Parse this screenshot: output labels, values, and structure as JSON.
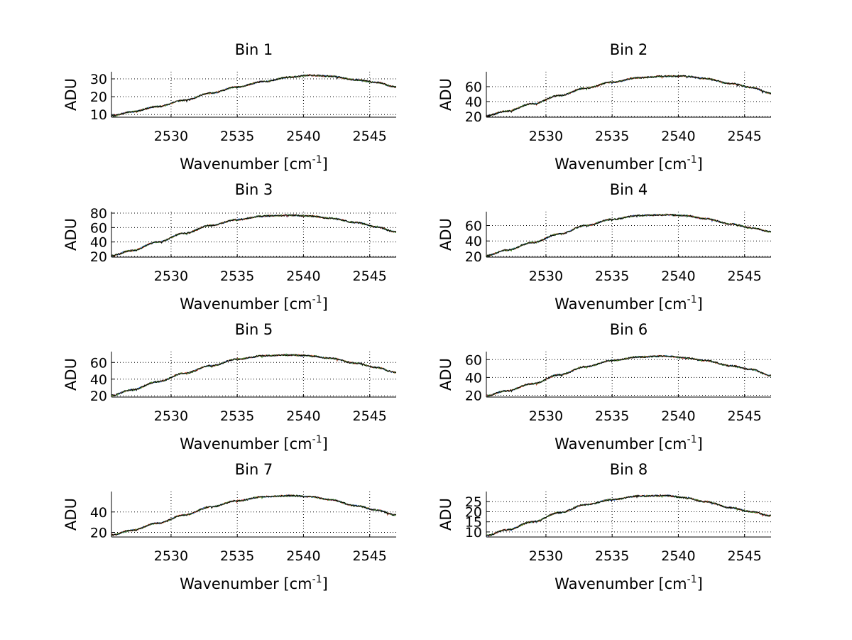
{
  "figure": {
    "background": "#ffffff",
    "series_colors": [
      "#1f5fd1",
      "#d43b1c",
      "#3a8a2a",
      "#000000"
    ]
  },
  "chart_data": [
    {
      "type": "line",
      "title": "Bin 1",
      "xlabel": "Wavenumber [cm",
      "xlabel_sup": "-1",
      "xlabel_close": "]",
      "ylabel": "ADU",
      "xlim": [
        2525.5,
        2547
      ],
      "ylim": [
        8.5,
        34
      ],
      "xticks": [
        2530,
        2535,
        2540,
        2545
      ],
      "xtick_labels": [
        "2530",
        "2535",
        "2540",
        "2545"
      ],
      "yticks": [
        10,
        20,
        30
      ],
      "ytick_labels": [
        "10",
        "20",
        "30"
      ],
      "grid": true,
      "series": [
        {
          "x": [
            2525.5,
            2527,
            2529,
            2531,
            2533,
            2535,
            2537,
            2539,
            2540.5,
            2542,
            2544,
            2545.5,
            2547
          ],
          "y": [
            9.2,
            11.5,
            14.5,
            18,
            22,
            25.5,
            28.5,
            31,
            32,
            31.5,
            29.5,
            28,
            25.5
          ]
        }
      ]
    },
    {
      "type": "line",
      "title": "Bin 2",
      "xlabel": "Wavenumber [cm",
      "xlabel_sup": "-1",
      "xlabel_close": "]",
      "ylabel": "ADU",
      "xlim": [
        2525.5,
        2547
      ],
      "ylim": [
        19,
        80
      ],
      "xticks": [
        2530,
        2535,
        2540,
        2545
      ],
      "xtick_labels": [
        "2530",
        "2535",
        "2540",
        "2545"
      ],
      "yticks": [
        20,
        40,
        60
      ],
      "ytick_labels": [
        "20",
        "40",
        "60"
      ],
      "grid": true,
      "series": [
        {
          "x": [
            2525.5,
            2527,
            2529,
            2531,
            2533,
            2535,
            2537,
            2539,
            2540.5,
            2542,
            2544,
            2545.5,
            2547
          ],
          "y": [
            21,
            27,
            37,
            48,
            58,
            66,
            72,
            74,
            74,
            71,
            64,
            59,
            51
          ]
        }
      ]
    },
    {
      "type": "line",
      "title": "Bin 3",
      "xlabel": "Wavenumber [cm",
      "xlabel_sup": "-1",
      "xlabel_close": "]",
      "ylabel": "ADU",
      "xlim": [
        2525.5,
        2547
      ],
      "ylim": [
        19,
        82
      ],
      "xticks": [
        2530,
        2535,
        2540,
        2545
      ],
      "xtick_labels": [
        "2530",
        "2535",
        "2540",
        "2545"
      ],
      "yticks": [
        20,
        40,
        60,
        80
      ],
      "ytick_labels": [
        "20",
        "40",
        "60",
        "80"
      ],
      "grid": true,
      "series": [
        {
          "x": [
            2525.5,
            2527,
            2529,
            2531,
            2533,
            2535,
            2537,
            2539,
            2540.5,
            2542,
            2544,
            2545.5,
            2547
          ],
          "y": [
            21,
            28,
            40,
            52,
            63,
            71,
            76,
            77,
            76,
            73,
            67,
            61,
            54
          ]
        }
      ]
    },
    {
      "type": "line",
      "title": "Bin 4",
      "xlabel": "Wavenumber [cm",
      "xlabel_sup": "-1",
      "xlabel_close": "]",
      "ylabel": "ADU",
      "xlim": [
        2525.5,
        2547
      ],
      "ylim": [
        19,
        78
      ],
      "xticks": [
        2530,
        2535,
        2540,
        2545
      ],
      "xtick_labels": [
        "2530",
        "2535",
        "2540",
        "2545"
      ],
      "yticks": [
        20,
        40,
        60
      ],
      "ytick_labels": [
        "20",
        "40",
        "60"
      ],
      "grid": true,
      "series": [
        {
          "x": [
            2525.5,
            2527,
            2529,
            2531,
            2533,
            2535,
            2537,
            2539,
            2540.5,
            2542,
            2544,
            2545.5,
            2547
          ],
          "y": [
            21,
            28,
            38,
            49,
            60,
            68,
            73,
            74,
            73,
            69,
            62,
            57,
            52
          ]
        }
      ]
    },
    {
      "type": "line",
      "title": "Bin 5",
      "xlabel": "Wavenumber [cm",
      "xlabel_sup": "-1",
      "xlabel_close": "]",
      "ylabel": "ADU",
      "xlim": [
        2525.5,
        2547
      ],
      "ylim": [
        18.5,
        73
      ],
      "xticks": [
        2530,
        2535,
        2540,
        2545
      ],
      "xtick_labels": [
        "2530",
        "2535",
        "2540",
        "2545"
      ],
      "yticks": [
        20,
        40,
        60
      ],
      "ytick_labels": [
        "20",
        "40",
        "60"
      ],
      "grid": true,
      "series": [
        {
          "x": [
            2525.5,
            2527,
            2529,
            2531,
            2533,
            2535,
            2537,
            2539,
            2540.5,
            2542,
            2544,
            2545.5,
            2547
          ],
          "y": [
            20.5,
            27,
            37,
            47,
            56,
            64,
            68,
            69,
            68,
            65,
            59,
            54,
            48
          ]
        }
      ]
    },
    {
      "type": "line",
      "title": "Bin 6",
      "xlabel": "Wavenumber [cm",
      "xlabel_sup": "-1",
      "xlabel_close": "]",
      "ylabel": "ADU",
      "xlim": [
        2525.5,
        2547
      ],
      "ylim": [
        18,
        69
      ],
      "xticks": [
        2530,
        2535,
        2540,
        2545
      ],
      "xtick_labels": [
        "2530",
        "2535",
        "2540",
        "2545"
      ],
      "yticks": [
        20,
        40,
        60
      ],
      "ytick_labels": [
        "20",
        "40",
        "60"
      ],
      "grid": true,
      "series": [
        {
          "x": [
            2525.5,
            2527,
            2529,
            2531,
            2533,
            2535,
            2537,
            2539,
            2540.5,
            2542,
            2544,
            2545.5,
            2547
          ],
          "y": [
            19.5,
            25,
            33,
            43,
            52,
            59,
            63,
            64,
            62,
            59,
            53,
            49,
            42
          ]
        }
      ]
    },
    {
      "type": "line",
      "title": "Bin 7",
      "xlabel": "Wavenumber [cm",
      "xlabel_sup": "-1",
      "xlabel_close": "]",
      "ylabel": "ADU",
      "xlim": [
        2525.5,
        2547
      ],
      "ylim": [
        15.5,
        60
      ],
      "xticks": [
        2530,
        2535,
        2540,
        2545
      ],
      "xtick_labels": [
        "2530",
        "2535",
        "2540",
        "2545"
      ],
      "yticks": [
        20,
        40
      ],
      "ytick_labels": [
        "20",
        "40"
      ],
      "grid": true,
      "series": [
        {
          "x": [
            2525.5,
            2527,
            2529,
            2531,
            2533,
            2535,
            2537,
            2539,
            2540.5,
            2542,
            2544,
            2545.5,
            2547
          ],
          "y": [
            17.5,
            22,
            29,
            37,
            45,
            51,
            55,
            56,
            55,
            52,
            46,
            42,
            37
          ]
        }
      ]
    },
    {
      "type": "line",
      "title": "Bin 8",
      "xlabel": "Wavenumber [cm",
      "xlabel_sup": "-1",
      "xlabel_close": "]",
      "ylabel": "ADU",
      "xlim": [
        2525.5,
        2547
      ],
      "ylim": [
        7.5,
        30
      ],
      "xticks": [
        2530,
        2535,
        2540,
        2545
      ],
      "xtick_labels": [
        "2530",
        "2535",
        "2540",
        "2545"
      ],
      "yticks": [
        10,
        15,
        20,
        25
      ],
      "ytick_labels": [
        "10",
        "15",
        "20",
        "25"
      ],
      "grid": true,
      "series": [
        {
          "x": [
            2525.5,
            2527,
            2529,
            2531,
            2533,
            2535,
            2537,
            2539,
            2540.5,
            2542,
            2544,
            2545.5,
            2547
          ],
          "y": [
            8.2,
            11,
            15,
            19.5,
            23.5,
            26,
            27.8,
            28,
            27,
            25,
            22,
            20,
            18
          ]
        }
      ]
    }
  ]
}
